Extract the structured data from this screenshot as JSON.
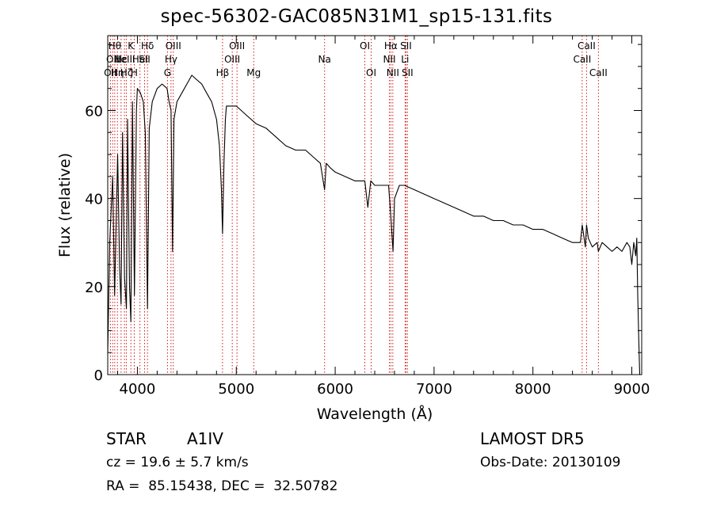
{
  "chart_data": {
    "type": "line",
    "title": "spec-56302-GAC085N31M1_sp15-131.fits",
    "xlabel": "Wavelength (Å)",
    "ylabel": "Flux (relative)",
    "xlim": [
      3700,
      9100
    ],
    "ylim": [
      0,
      77
    ],
    "xticks": [
      4000,
      5000,
      6000,
      7000,
      8000,
      9000
    ],
    "yticks": [
      0,
      20,
      40,
      60
    ],
    "line_color": "#000000",
    "marker_color": "#cc0000",
    "series": [
      {
        "x": [
          3700,
          3720,
          3750,
          3770,
          3800,
          3820,
          3835,
          3850,
          3870,
          3889,
          3900,
          3920,
          3934,
          3950,
          3970,
          3990,
          4000,
          4030,
          4060,
          4080,
          4102,
          4120,
          4150,
          4200,
          4250,
          4300,
          4320,
          4340,
          4355,
          4370,
          4400,
          4450,
          4500,
          4550,
          4600,
          4650,
          4700,
          4750,
          4800,
          4830,
          4850,
          4861,
          4875,
          4890,
          4900,
          4950,
          5000,
          5100,
          5200,
          5300,
          5400,
          5500,
          5600,
          5700,
          5800,
          5850,
          5893,
          5910,
          5950,
          6000,
          6100,
          6200,
          6250,
          6300,
          6330,
          6360,
          6400,
          6450,
          6500,
          6540,
          6563,
          6585,
          6600,
          6650,
          6700,
          6800,
          6900,
          7000,
          7100,
          7200,
          7300,
          7400,
          7500,
          7600,
          7700,
          7800,
          7900,
          8000,
          8100,
          8200,
          8300,
          8400,
          8480,
          8498,
          8530,
          8542,
          8560,
          8600,
          8650,
          8662,
          8700,
          8750,
          8800,
          8850,
          8900,
          8950,
          8980,
          9000,
          9020,
          9040,
          9050,
          9060,
          9070,
          9080
        ],
        "y": [
          5,
          30,
          45,
          18,
          50,
          24,
          16,
          55,
          22,
          15,
          58,
          20,
          12,
          62,
          18,
          60,
          65,
          64,
          62,
          55,
          15,
          56,
          62,
          65,
          66,
          65,
          62,
          60,
          28,
          58,
          62,
          64,
          66,
          68,
          67,
          66,
          64,
          62,
          58,
          52,
          42,
          32,
          48,
          58,
          61,
          61,
          61,
          59,
          57,
          56,
          54,
          52,
          51,
          51,
          49,
          48,
          42,
          48,
          47,
          46,
          45,
          44,
          44,
          44,
          38,
          44,
          43,
          43,
          43,
          43,
          36,
          28,
          40,
          43,
          43,
          42,
          41,
          40,
          39,
          38,
          37,
          36,
          36,
          35,
          35,
          34,
          34,
          33,
          33,
          32,
          31,
          30,
          30,
          34,
          29,
          34,
          31,
          29,
          30,
          28,
          30,
          29,
          28,
          29,
          28,
          30,
          29,
          25,
          30,
          27,
          31,
          18,
          8,
          0
        ]
      }
    ],
    "line_markers": [
      {
        "x": 3727,
        "label": "OII",
        "row": 2
      },
      {
        "x": 3750,
        "label": "OII",
        "row": 1
      },
      {
        "x": 3771,
        "label": "Hθ",
        "row": 0
      },
      {
        "x": 3798,
        "label": "Hη",
        "row": 2
      },
      {
        "x": 3835,
        "label": "Hε",
        "row": 1
      },
      {
        "x": 3869,
        "label": "NeIII",
        "row": 1
      },
      {
        "x": 3889,
        "label": "Hζ",
        "row": 2
      },
      {
        "x": 3934,
        "label": "K",
        "row": 0
      },
      {
        "x": 3968,
        "label": "H",
        "row": 2
      },
      {
        "x": 4026,
        "label": "HeI",
        "row": 1
      },
      {
        "x": 4072,
        "label": "SII",
        "row": 1
      },
      {
        "x": 4102,
        "label": "Hδ",
        "row": 0
      },
      {
        "x": 4304,
        "label": "G",
        "row": 2
      },
      {
        "x": 4340,
        "label": "Hγ",
        "row": 1
      },
      {
        "x": 4363,
        "label": "OIII",
        "row": 0
      },
      {
        "x": 4861,
        "label": "Hβ",
        "row": 2
      },
      {
        "x": 4959,
        "label": "OIII",
        "row": 1
      },
      {
        "x": 5007,
        "label": "OIII",
        "row": 0
      },
      {
        "x": 5176,
        "label": "Mg",
        "row": 2
      },
      {
        "x": 5893,
        "label": "Na",
        "row": 1
      },
      {
        "x": 6300,
        "label": "OI",
        "row": 0
      },
      {
        "x": 6364,
        "label": "OI",
        "row": 2
      },
      {
        "x": 6548,
        "label": "NII",
        "row": 1
      },
      {
        "x": 6563,
        "label": "Hα",
        "row": 0
      },
      {
        "x": 6583,
        "label": "NII",
        "row": 2
      },
      {
        "x": 6707,
        "label": "Li",
        "row": 1
      },
      {
        "x": 6716,
        "label": "SII",
        "row": 0
      },
      {
        "x": 6731,
        "label": "SII",
        "row": 2
      },
      {
        "x": 8498,
        "label": "CaII",
        "row": 1
      },
      {
        "x": 8542,
        "label": "CaII",
        "row": 0
      },
      {
        "x": 8662,
        "label": "CaII",
        "row": 2
      }
    ]
  },
  "info": {
    "object_type": "STAR",
    "subclass": "A1IV",
    "redshift": "cz = 19.6 ± 5.7 km/s",
    "coords": "RA =  85.15438, DEC =  32.50782",
    "survey": "LAMOST DR5",
    "obs_date": "Obs-Date: 20130109"
  }
}
